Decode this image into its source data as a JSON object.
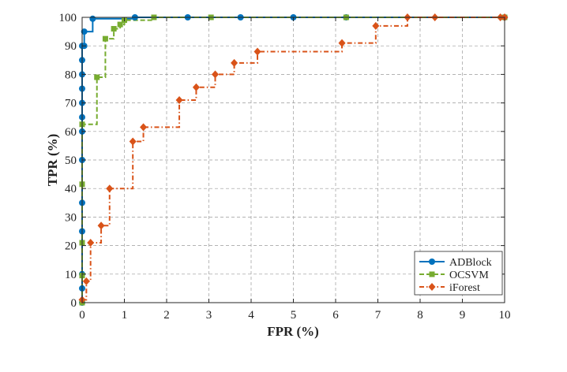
{
  "chart_data": {
    "type": "line",
    "xlabel": "FPR (%)",
    "ylabel": "TPR (%)",
    "xlim": [
      0,
      10
    ],
    "ylim": [
      0,
      100
    ],
    "xticks": [
      0,
      1,
      2,
      3,
      4,
      5,
      6,
      7,
      8,
      9,
      10
    ],
    "yticks": [
      0,
      10,
      20,
      30,
      40,
      50,
      60,
      70,
      80,
      90,
      100
    ],
    "xtick_labels": [
      "0",
      "1",
      "2",
      "3",
      "4",
      "5",
      "6",
      "7",
      "8",
      "9",
      "10"
    ],
    "ytick_labels": [
      "0",
      "10",
      "20",
      "30",
      "40",
      "50",
      "60",
      "70",
      "80",
      "90",
      "100"
    ],
    "grid": true,
    "legend_position": "bottom-right",
    "series": [
      {
        "name": "ADBlock",
        "color": "#0072BD",
        "line_style": "solid",
        "marker": "circle",
        "x": [
          0,
          0,
          0,
          0,
          0,
          0,
          0,
          0,
          0,
          0,
          0,
          0,
          0,
          0.05,
          0.05,
          0.25,
          1.25,
          2.5,
          3.75,
          5.0,
          6.25,
          10.0
        ],
        "y": [
          0,
          5,
          10,
          25,
          35,
          50,
          60,
          65,
          70,
          75,
          80,
          85,
          90,
          90,
          95,
          99.5,
          100,
          100,
          100,
          100,
          100,
          100
        ]
      },
      {
        "name": "OCSVM",
        "color": "#77AC30",
        "line_style": "dashed",
        "marker": "square",
        "x": [
          0,
          0,
          0,
          0,
          0,
          0.35,
          0.55,
          0.75,
          0.9,
          1.0,
          1.7,
          3.05,
          6.25,
          10.0
        ],
        "y": [
          0,
          9.5,
          21,
          41.5,
          62.5,
          79,
          92.5,
          96,
          97.5,
          99,
          100,
          100,
          100,
          100
        ]
      },
      {
        "name": "iForest",
        "color": "#D95319",
        "line_style": "dashdot",
        "marker": "diamond",
        "x": [
          0,
          0.1,
          0.2,
          0.45,
          0.65,
          1.2,
          1.45,
          2.3,
          2.7,
          3.15,
          3.6,
          4.15,
          6.15,
          6.95,
          7.7,
          8.35,
          9.9,
          10.0
        ],
        "y": [
          1,
          7.5,
          21,
          27,
          40,
          56.5,
          61.5,
          71,
          75.5,
          80,
          84,
          88,
          91,
          97,
          100,
          100,
          100,
          100
        ]
      }
    ]
  }
}
